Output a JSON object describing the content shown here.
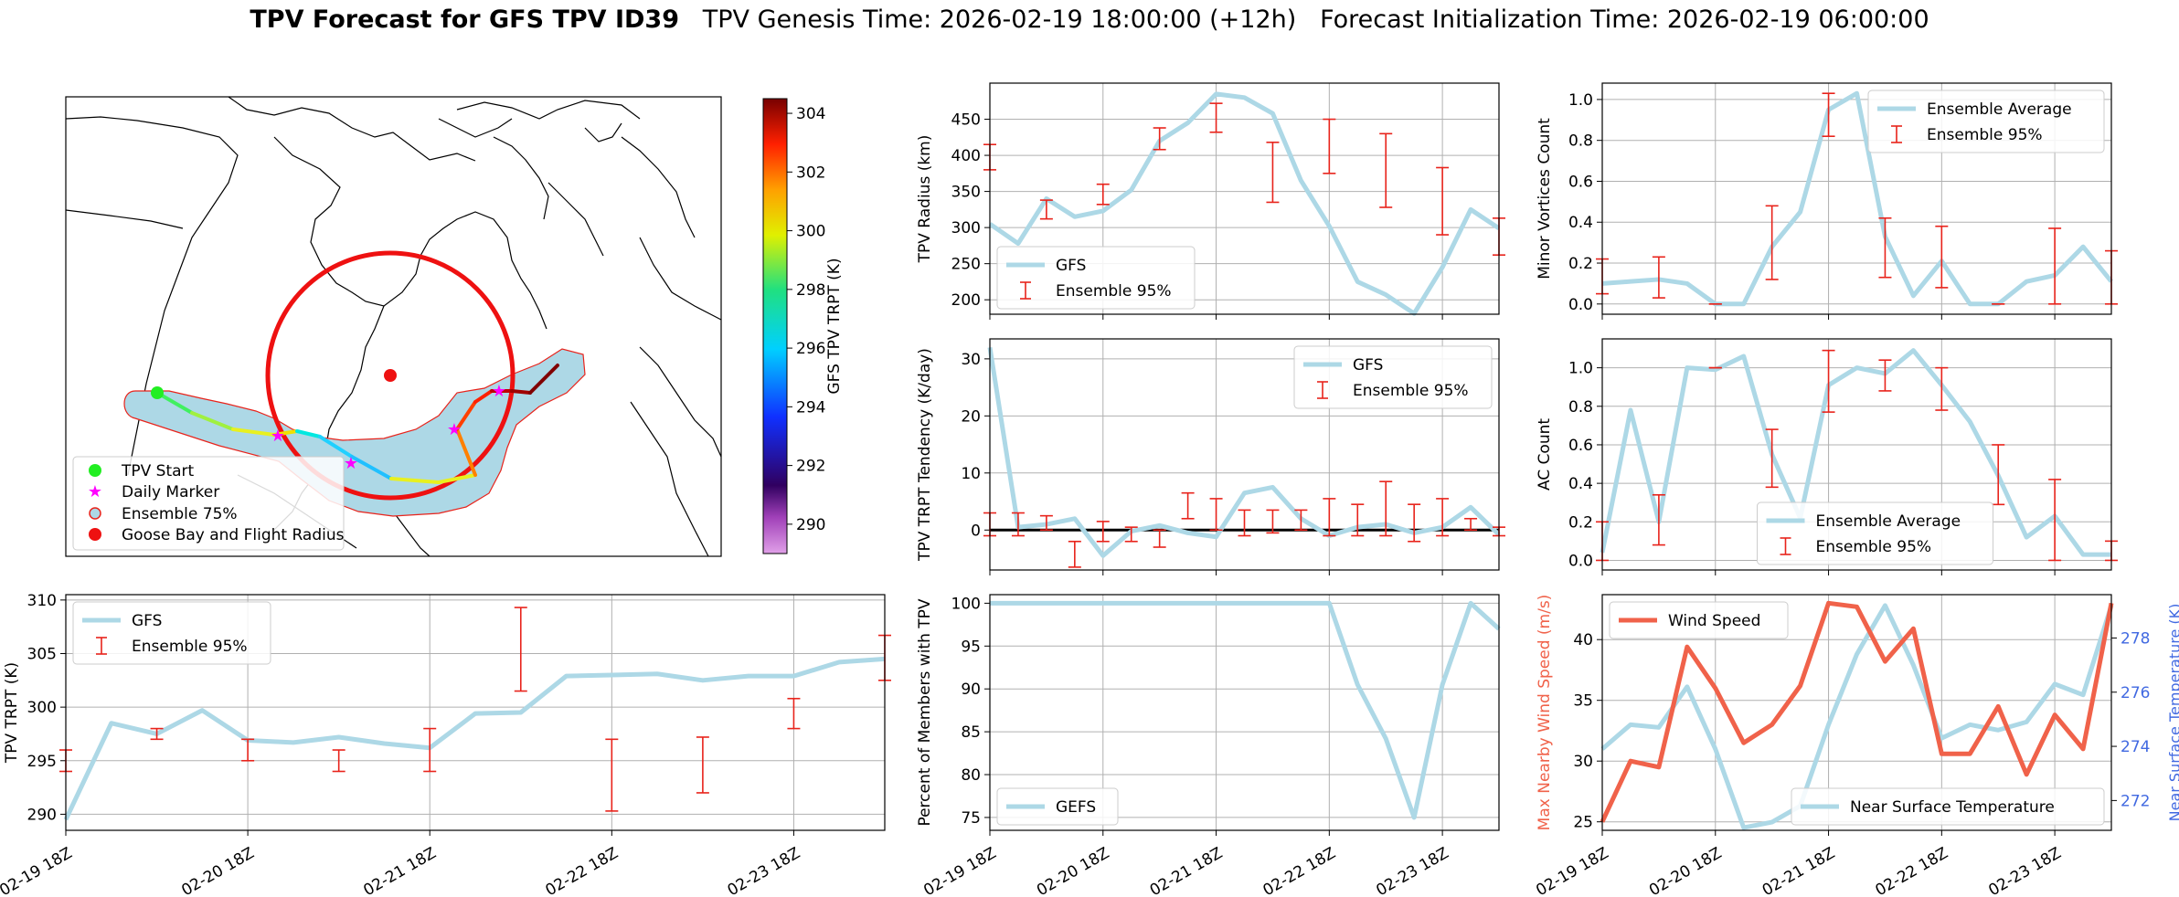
{
  "title": {
    "main": "TPV Forecast for GFS TPV ID39",
    "genesis": "TPV Genesis Time: 2026-02-19 18:00:00 (+12h)",
    "init": "Forecast Initialization Time: 2026-02-19 06:00:00"
  },
  "colors": {
    "gfs_line": "#add8e6",
    "ensemble_bar": "#e8231b",
    "wind": "#f0624a",
    "temp_axis": "#4169e1",
    "flight_circle": "#ee1111",
    "ensemble_fill": "#add8e6"
  },
  "chart_data": [
    {
      "id": "map",
      "type": "map",
      "legend": [
        "TPV Start",
        "Daily Marker",
        "Ensemble 75%",
        "Goose Bay and Flight Radius"
      ],
      "colorbar": {
        "label": "GFS TPV TRPT (K)",
        "ticks": [
          290,
          292,
          294,
          296,
          298,
          300,
          302,
          304
        ],
        "range": [
          289,
          304.5
        ]
      }
    },
    {
      "id": "trpt",
      "type": "line",
      "ylabel": "TPV TRPT (K)",
      "ylim": [
        288.5,
        310.5
      ],
      "yticks": [
        290,
        295,
        300,
        305,
        310
      ],
      "xticks": [
        "02-19 18Z",
        "02-20 18Z",
        "02-21 18Z",
        "02-22 18Z",
        "02-23 18Z"
      ],
      "legend": [
        "GFS",
        "Ensemble 95%"
      ],
      "legend_loc": "upper-left",
      "series": [
        {
          "name": "GFS",
          "values": [
            289.5,
            298.5,
            297.5,
            299.7,
            296.9,
            296.7,
            297.2,
            296.6,
            296.2,
            299.4,
            299.5,
            302.9,
            303.0,
            303.1,
            302.5,
            302.9,
            302.9,
            304.2,
            304.5
          ]
        }
      ],
      "error_bars": [
        {
          "i": 0,
          "lo": 294.0,
          "hi": 296.0
        },
        {
          "i": 2,
          "lo": 297.0,
          "hi": 298.0
        },
        {
          "i": 4,
          "lo": 295.0,
          "hi": 297.0
        },
        {
          "i": 6,
          "lo": 294.0,
          "hi": 296.0
        },
        {
          "i": 8,
          "lo": 294.0,
          "hi": 298.0
        },
        {
          "i": 10,
          "lo": 301.5,
          "hi": 309.3
        },
        {
          "i": 12,
          "lo": 290.3,
          "hi": 297.0
        },
        {
          "i": 14,
          "lo": 292.0,
          "hi": 297.2
        },
        {
          "i": 16,
          "lo": 298.0,
          "hi": 300.8
        },
        {
          "i": 18,
          "lo": 302.5,
          "hi": 306.7
        }
      ]
    },
    {
      "id": "radius",
      "type": "line",
      "ylabel": "TPV Radius (km)",
      "ylim": [
        180,
        500
      ],
      "yticks": [
        200,
        250,
        300,
        350,
        400,
        450
      ],
      "xticks": [
        "02-19 18Z",
        "02-20 18Z",
        "02-21 18Z",
        "02-22 18Z",
        "02-23 18Z"
      ],
      "legend": [
        "GFS",
        "Ensemble 95%"
      ],
      "legend_loc": "lower-left",
      "series": [
        {
          "name": "GFS",
          "values": [
            305,
            278,
            340,
            315,
            323,
            352,
            420,
            445,
            485,
            480,
            458,
            365,
            302,
            225,
            207,
            181,
            245,
            325,
            299
          ]
        }
      ],
      "error_bars": [
        {
          "i": 0,
          "lo": 380,
          "hi": 415
        },
        {
          "i": 2,
          "lo": 312,
          "hi": 338
        },
        {
          "i": 4,
          "lo": 332,
          "hi": 360
        },
        {
          "i": 6,
          "lo": 408,
          "hi": 438
        },
        {
          "i": 8,
          "lo": 432,
          "hi": 472
        },
        {
          "i": 10,
          "lo": 335,
          "hi": 418
        },
        {
          "i": 12,
          "lo": 375,
          "hi": 450
        },
        {
          "i": 14,
          "lo": 328,
          "hi": 430
        },
        {
          "i": 16,
          "lo": 290,
          "hi": 383
        },
        {
          "i": 18,
          "lo": 262,
          "hi": 313
        }
      ]
    },
    {
      "id": "tendency",
      "type": "line",
      "ylabel": "TPV TRPT Tendency (K/day)",
      "ylim": [
        -7,
        33.5
      ],
      "yticks": [
        0,
        10,
        20,
        30
      ],
      "xticks": [
        "02-19 18Z",
        "02-20 18Z",
        "02-21 18Z",
        "02-22 18Z",
        "02-23 18Z"
      ],
      "legend": [
        "GFS",
        "Ensemble 95%"
      ],
      "legend_loc": "upper-right",
      "series": [
        {
          "name": "GFS",
          "values": [
            32,
            0.5,
            1.0,
            2.0,
            -4.5,
            -0.2,
            0.8,
            -0.5,
            -1.2,
            6.5,
            7.5,
            2.0,
            -1.0,
            0.5,
            1.0,
            -0.5,
            0.5,
            4.0,
            -0.8
          ]
        }
      ],
      "error_bars": [
        {
          "i": 0,
          "lo": -1,
          "hi": 3
        },
        {
          "i": 1,
          "lo": -1,
          "hi": 3
        },
        {
          "i": 2,
          "lo": 0,
          "hi": 2.5
        },
        {
          "i": 3,
          "lo": -6.5,
          "hi": -2
        },
        {
          "i": 4,
          "lo": -2,
          "hi": 1.5
        },
        {
          "i": 5,
          "lo": -2,
          "hi": 0.5
        },
        {
          "i": 6,
          "lo": -3,
          "hi": 0
        },
        {
          "i": 7,
          "lo": 2,
          "hi": 6.5
        },
        {
          "i": 8,
          "lo": 0,
          "hi": 5.5
        },
        {
          "i": 9,
          "lo": -1,
          "hi": 3.5
        },
        {
          "i": 10,
          "lo": -0.5,
          "hi": 3.5
        },
        {
          "i": 11,
          "lo": 0,
          "hi": 3.5
        },
        {
          "i": 12,
          "lo": -1,
          "hi": 5.5
        },
        {
          "i": 13,
          "lo": -1,
          "hi": 4.5
        },
        {
          "i": 14,
          "lo": -1,
          "hi": 8.5
        },
        {
          "i": 15,
          "lo": -2,
          "hi": 4.5
        },
        {
          "i": 16,
          "lo": -1,
          "hi": 5.5
        },
        {
          "i": 17,
          "lo": 0,
          "hi": 2
        },
        {
          "i": 18,
          "lo": -1,
          "hi": 0.5
        }
      ],
      "zero_line": true
    },
    {
      "id": "members",
      "type": "line",
      "ylabel": "Percent of Members with TPV",
      "ylim": [
        73.5,
        101
      ],
      "yticks": [
        75,
        80,
        85,
        90,
        95,
        100
      ],
      "xticks": [
        "02-19 18Z",
        "02-20 18Z",
        "02-21 18Z",
        "02-22 18Z",
        "02-23 18Z"
      ],
      "legend": [
        "GEFS"
      ],
      "legend_loc": "lower-left",
      "series": [
        {
          "name": "GEFS",
          "values": [
            100,
            100,
            100,
            100,
            100,
            100,
            100,
            100,
            100,
            100,
            100,
            100,
            100,
            90.5,
            84.2,
            75,
            90.5,
            100,
            97
          ]
        }
      ]
    },
    {
      "id": "minor",
      "type": "line",
      "ylabel": "Minor Vortices Count",
      "ylim": [
        -0.05,
        1.08
      ],
      "yticks": [
        0.0,
        0.2,
        0.4,
        0.6,
        0.8,
        1.0
      ],
      "xticks": [
        "02-19 18Z",
        "02-20 18Z",
        "02-21 18Z",
        "02-22 18Z",
        "02-23 18Z"
      ],
      "legend": [
        "Ensemble Average",
        "Ensemble 95%"
      ],
      "legend_loc": "upper-right",
      "series": [
        {
          "name": "Ensemble Average",
          "values": [
            0.1,
            0.11,
            0.12,
            0.1,
            0.0,
            0.0,
            0.28,
            0.45,
            0.95,
            1.03,
            0.33,
            0.04,
            0.21,
            0.0,
            0.0,
            0.11,
            0.14,
            0.28,
            0.11
          ]
        }
      ],
      "error_bars": [
        {
          "i": 0,
          "lo": 0.05,
          "hi": 0.22
        },
        {
          "i": 2,
          "lo": 0.03,
          "hi": 0.23
        },
        {
          "i": 4,
          "lo": 0.0,
          "hi": 0.0
        },
        {
          "i": 6,
          "lo": 0.12,
          "hi": 0.48
        },
        {
          "i": 8,
          "lo": 0.82,
          "hi": 1.03
        },
        {
          "i": 10,
          "lo": 0.13,
          "hi": 0.42
        },
        {
          "i": 12,
          "lo": 0.08,
          "hi": 0.38
        },
        {
          "i": 14,
          "lo": 0.0,
          "hi": 0.0
        },
        {
          "i": 16,
          "lo": 0.0,
          "hi": 0.37
        },
        {
          "i": 18,
          "lo": 0.0,
          "hi": 0.26
        }
      ]
    },
    {
      "id": "ac",
      "type": "line",
      "ylabel": "AC Count",
      "ylim": [
        -0.05,
        1.15
      ],
      "yticks": [
        0.0,
        0.2,
        0.4,
        0.6,
        0.8,
        1.0
      ],
      "xticks": [
        "02-19 18Z",
        "02-20 18Z",
        "02-21 18Z",
        "02-22 18Z",
        "02-23 18Z"
      ],
      "legend": [
        "Ensemble Average",
        "Ensemble 95%"
      ],
      "legend_loc": "lower-center",
      "series": [
        {
          "name": "Ensemble Average",
          "values": [
            0.04,
            0.78,
            0.2,
            1.0,
            0.99,
            1.06,
            0.55,
            0.22,
            0.91,
            1.0,
            0.97,
            1.09,
            0.91,
            0.72,
            0.44,
            0.12,
            0.23,
            0.03,
            0.03
          ]
        }
      ],
      "error_bars": [
        {
          "i": 0,
          "lo": 0.0,
          "hi": 0.2
        },
        {
          "i": 2,
          "lo": 0.08,
          "hi": 0.34
        },
        {
          "i": 4,
          "lo": 1.0,
          "hi": 1.0
        },
        {
          "i": 6,
          "lo": 0.38,
          "hi": 0.68
        },
        {
          "i": 8,
          "lo": 0.77,
          "hi": 1.09
        },
        {
          "i": 10,
          "lo": 0.88,
          "hi": 1.04
        },
        {
          "i": 12,
          "lo": 0.78,
          "hi": 1.0
        },
        {
          "i": 14,
          "lo": 0.29,
          "hi": 0.6
        },
        {
          "i": 16,
          "lo": 0.0,
          "hi": 0.42
        },
        {
          "i": 18,
          "lo": 0.0,
          "hi": 0.1
        }
      ]
    },
    {
      "id": "wind",
      "type": "line",
      "ylabel": "Max Nearby Wind Speed (m/s)",
      "ylabel_right": "Near Surface Temperature (K)",
      "ylim": [
        24.3,
        43.7
      ],
      "ylim_right": [
        270.9,
        279.6
      ],
      "yticks": [
        25,
        30,
        35,
        40
      ],
      "yticks_right": [
        272,
        274,
        276,
        278
      ],
      "xticks": [
        "02-19 18Z",
        "02-20 18Z",
        "02-21 18Z",
        "02-22 18Z",
        "02-23 18Z"
      ],
      "legend": [
        "Wind Speed"
      ],
      "legend_right": [
        "Near Surface Temperature"
      ],
      "series": [
        {
          "name": "Wind Speed",
          "values": [
            25,
            30,
            29.5,
            39.4,
            36,
            31.5,
            33,
            36.2,
            43,
            42.7,
            38.2,
            40.9,
            30.6,
            30.6,
            34.5,
            28.9,
            33.8,
            31,
            43
          ]
        },
        {
          "name": "Near Surface Temperature",
          "values": [
            273.9,
            274.8,
            274.7,
            276.2,
            273.9,
            271.0,
            271.2,
            271.8,
            274.8,
            277.4,
            279.2,
            277.0,
            274.3,
            274.8,
            274.6,
            274.9,
            276.3,
            275.9,
            279.2
          ]
        }
      ]
    }
  ]
}
